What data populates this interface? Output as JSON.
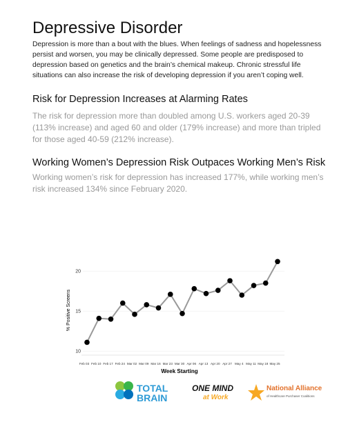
{
  "header": {
    "title": "Depressive Disorder",
    "intro": "Depression is more than a bout with the blues. When feelings of sadness and hopelessness persist and worsen, you may be clinically depressed. Some people are predisposed to depression based on genetics and the brain’s chemical makeup. Chronic stressful life situations can also increase the risk of developing depression if you aren’t coping well."
  },
  "sections": [
    {
      "heading": "Risk for Depression Increases at Alarming Rates",
      "text": "The risk for depression more than doubled among U.S. workers aged 20-39 (113% increase) and aged 60 and older (179% increase) and more than tripled for those aged 40-59 (212% increase)."
    },
    {
      "heading": "Working Women’s Depression Risk Outpaces Working Men’s Risk",
      "text": "Working women’s risk for depression has increased 177%, while working men’s risk increased 134% since February 2020."
    }
  ],
  "chart_data": {
    "type": "line",
    "x_label": "Week Starting",
    "y_label": "% Positive Screens",
    "categories": [
      "Feb 03",
      "Feb 10",
      "Feb 17",
      "Feb 24",
      "Mar 02",
      "Mar 09",
      "Mar 16",
      "Mar 23",
      "Mar 30",
      "Apr 06",
      "Apr 13",
      "Apr 20",
      "Apr 27",
      "May 4",
      "May 11",
      "May 18",
      "May 25"
    ],
    "values": [
      11.1,
      14.1,
      14.0,
      16.0,
      14.6,
      15.8,
      15.4,
      17.1,
      14.7,
      17.8,
      17.2,
      17.6,
      18.8,
      17.0,
      18.2,
      18.5,
      21.2
    ],
    "color": "#999999",
    "marker_color": "#000000",
    "ylim": [
      9.5,
      22
    ],
    "yticks": [
      10,
      15,
      20
    ],
    "grid": true
  },
  "logos": [
    {
      "line1": "TOTAL",
      "line2": "BRAIN"
    },
    {
      "line1": "ONE MIND",
      "line2": "at Work"
    },
    {
      "line1": "National Alliance",
      "line2": "of Healthcare Purchaser Coalitions"
    }
  ]
}
